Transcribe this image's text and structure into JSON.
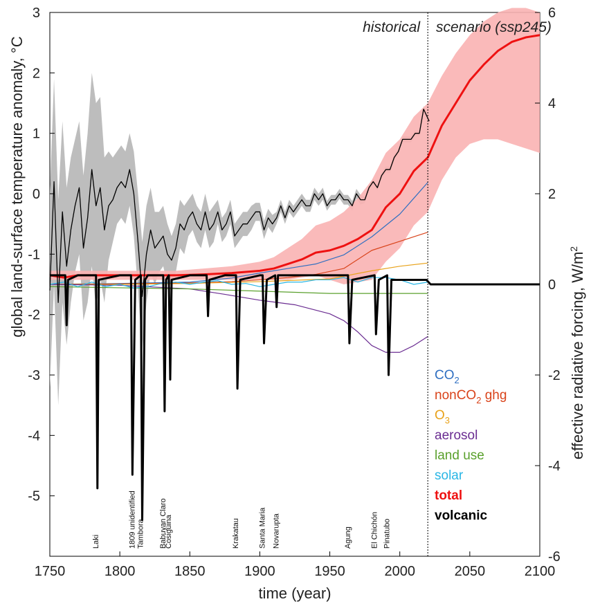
{
  "chart_data": {
    "type": "line",
    "xlabel": "time (year)",
    "ylabel_left": "global land-surface temperature anomaly, °C",
    "ylabel_right": "effective radiative forcing, W/m²",
    "ylabel_right_text": "effective radiative forcing, W/m",
    "ylabel_right_sup": "2",
    "xlim": [
      1750,
      2100
    ],
    "ylim_left": [
      -6,
      3
    ],
    "ylim_right": [
      -6,
      6
    ],
    "xticks": [
      "1750",
      "1800",
      "1850",
      "1900",
      "1950",
      "2000",
      "2050",
      "2100"
    ],
    "yticks_left": [
      "3",
      "2",
      "1",
      "0",
      "-1",
      "-2",
      "-3",
      "-4",
      "-5"
    ],
    "yticks_right": [
      "6",
      "4",
      "2",
      "0",
      "-2",
      "-4",
      "-6"
    ],
    "period_labels": {
      "historical": "historical",
      "scenario": "scenario (ssp245)"
    },
    "period_divider_year": 2020,
    "grid": false,
    "legend_position": "lower-right outside",
    "temperature_series": {
      "axis": "left",
      "color": "#000000",
      "band_color": "#bdbdbd",
      "x": [
        1750,
        1753,
        1756,
        1759,
        1762,
        1765,
        1768,
        1771,
        1774,
        1777,
        1780,
        1783,
        1786,
        1789,
        1792,
        1795,
        1798,
        1801,
        1804,
        1807,
        1810,
        1813,
        1816,
        1819,
        1822,
        1825,
        1828,
        1831,
        1834,
        1837,
        1840,
        1843,
        1846,
        1849,
        1852,
        1855,
        1858,
        1861,
        1864,
        1867,
        1870,
        1873,
        1876,
        1879,
        1882,
        1885,
        1888,
        1891,
        1894,
        1897,
        1900,
        1903,
        1906,
        1909,
        1912,
        1915,
        1918,
        1921,
        1924,
        1927,
        1930,
        1933,
        1936,
        1939,
        1942,
        1945,
        1948,
        1951,
        1954,
        1957,
        1960,
        1963,
        1966,
        1969,
        1972,
        1975,
        1978,
        1981,
        1984,
        1987,
        1990,
        1993,
        1996,
        1999,
        2002,
        2005,
        2008,
        2011,
        2014,
        2017,
        2019,
        2021
      ],
      "y": [
        -1.6,
        0.2,
        -1.8,
        -0.3,
        -1.2,
        -0.6,
        -0.2,
        0.1,
        -0.9,
        -0.4,
        0.4,
        -0.2,
        0.1,
        -0.6,
        -0.2,
        -0.1,
        0.1,
        0.2,
        0.1,
        0.4,
        0.0,
        -0.8,
        -1.7,
        -1.0,
        -0.6,
        -0.9,
        -0.8,
        -0.7,
        -1.0,
        -1.1,
        -0.9,
        -0.5,
        -0.6,
        -0.4,
        -0.3,
        -0.5,
        -0.6,
        -0.3,
        -0.6,
        -0.5,
        -0.3,
        -0.6,
        -0.5,
        -0.3,
        -0.7,
        -0.6,
        -0.5,
        -0.5,
        -0.4,
        -0.3,
        -0.3,
        -0.6,
        -0.4,
        -0.5,
        -0.4,
        -0.2,
        -0.4,
        -0.2,
        -0.3,
        -0.2,
        -0.1,
        -0.2,
        -0.2,
        0.0,
        -0.1,
        0.0,
        -0.2,
        -0.1,
        -0.1,
        0.0,
        -0.1,
        -0.1,
        -0.2,
        0.0,
        -0.1,
        -0.1,
        0.1,
        0.2,
        0.1,
        0.3,
        0.4,
        0.4,
        0.6,
        0.7,
        0.9,
        0.9,
        0.9,
        1.0,
        1.0,
        1.4,
        1.3,
        1.2
      ],
      "band_halfwidth": [
        1.6,
        1.7,
        1.7,
        1.5,
        1.3,
        1.2,
        1.1,
        1.1,
        1.2,
        1.4,
        1.6,
        1.7,
        1.5,
        1.2,
        0.9,
        0.7,
        0.6,
        0.6,
        0.6,
        0.6,
        0.7,
        0.8,
        0.9,
        0.8,
        0.7,
        0.6,
        0.5,
        0.5,
        0.5,
        0.4,
        0.4,
        0.4,
        0.4,
        0.3,
        0.3,
        0.3,
        0.3,
        0.3,
        0.3,
        0.3,
        0.2,
        0.2,
        0.2,
        0.2,
        0.2,
        0.2,
        0.2,
        0.2,
        0.2,
        0.15,
        0.15,
        0.15,
        0.15,
        0.15,
        0.1,
        0.1,
        0.1,
        0.1,
        0.1,
        0.1,
        0.1,
        0.1,
        0.1,
        0.1,
        0.1,
        0.1,
        0.08,
        0.08,
        0.08,
        0.08,
        0.08,
        0.08,
        0.08,
        0.08,
        0.08,
        0.05,
        0.05,
        0.05,
        0.05,
        0.05,
        0.05,
        0.05,
        0.05,
        0.05,
        0.05,
        0.05,
        0.05,
        0.05,
        0.05,
        0.05,
        0.05,
        0.05
      ]
    },
    "forcing_series": [
      {
        "name": "CO2",
        "label_main": "CO",
        "label_sub": "2",
        "color": "#2f6fc1",
        "width": 1.2,
        "axis": "right",
        "x": [
          1750,
          1800,
          1850,
          1880,
          1900,
          1920,
          1940,
          1960,
          1980,
          2000,
          2010,
          2020
        ],
        "y": [
          0,
          0.02,
          0.05,
          0.14,
          0.25,
          0.35,
          0.45,
          0.65,
          1.05,
          1.55,
          1.9,
          2.25
        ]
      },
      {
        "name": "nonCO2 ghg",
        "label_main": "nonCO",
        "label_sub": "2",
        "label_tail": " ghg",
        "color": "#d9431a",
        "width": 1.2,
        "axis": "right",
        "x": [
          1750,
          1800,
          1850,
          1880,
          1900,
          1920,
          1940,
          1960,
          1980,
          2000,
          2010,
          2020
        ],
        "y": [
          0,
          0.01,
          0.03,
          0.06,
          0.1,
          0.15,
          0.22,
          0.35,
          0.75,
          0.95,
          1.05,
          1.15
        ]
      },
      {
        "name": "O3",
        "label_main": "O",
        "label_sub": "3",
        "color": "#e8a21a",
        "width": 1.2,
        "axis": "right",
        "x": [
          1750,
          1800,
          1850,
          1900,
          1950,
          1980,
          2000,
          2020
        ],
        "y": [
          0,
          0.0,
          0.02,
          0.06,
          0.12,
          0.3,
          0.4,
          0.47
        ]
      },
      {
        "name": "aerosol",
        "label_main": "aerosol",
        "color": "#6a2c91",
        "width": 1.2,
        "axis": "right",
        "x": [
          1750,
          1800,
          1850,
          1875,
          1900,
          1925,
          1950,
          1960,
          1970,
          1980,
          1990,
          2000,
          2010,
          2020
        ],
        "y": [
          0,
          -0.02,
          -0.1,
          -0.22,
          -0.35,
          -0.45,
          -0.65,
          -0.8,
          -1.05,
          -1.35,
          -1.5,
          -1.5,
          -1.35,
          -1.15
        ]
      },
      {
        "name": "land use",
        "label_main": "land use",
        "color": "#5aa02c",
        "width": 1.2,
        "axis": "right",
        "x": [
          1750,
          1850,
          1950,
          2020
        ],
        "y": [
          -0.05,
          -0.1,
          -0.2,
          -0.2
        ]
      },
      {
        "name": "solar",
        "label_main": "solar",
        "color": "#29b6e5",
        "width": 1.2,
        "axis": "right",
        "x": [
          1750,
          1760,
          1770,
          1780,
          1790,
          1800,
          1810,
          1820,
          1830,
          1840,
          1850,
          1860,
          1870,
          1880,
          1890,
          1900,
          1910,
          1920,
          1930,
          1940,
          1950,
          1960,
          1970,
          1980,
          1990,
          2000,
          2010,
          2020
        ],
        "y": [
          0,
          0.05,
          -0.05,
          0.05,
          -0.05,
          0.0,
          -0.08,
          -0.05,
          0.02,
          0.05,
          0.0,
          0.05,
          0.08,
          0.0,
          0.02,
          -0.05,
          0.0,
          0.05,
          0.05,
          0.1,
          0.1,
          0.15,
          0.05,
          0.15,
          0.15,
          0.1,
          0.0,
          0.05
        ]
      },
      {
        "name": "total",
        "label_main": "total",
        "color": "#ee1111",
        "width": 3,
        "bold": true,
        "axis": "right",
        "x": [
          1750,
          1760,
          1770,
          1780,
          1790,
          1800,
          1820,
          1840,
          1860,
          1880,
          1900,
          1910,
          1920,
          1930,
          1940,
          1950,
          1960,
          1970,
          1980,
          1990,
          2000,
          2010,
          2020,
          2030,
          2040,
          2050,
          2060,
          2070,
          2080,
          2090,
          2100
        ],
        "y": [
          0.2,
          0.15,
          0.2,
          0.2,
          0.2,
          0.2,
          0.2,
          0.2,
          0.22,
          0.25,
          0.3,
          0.35,
          0.45,
          0.55,
          0.7,
          0.75,
          0.85,
          1.0,
          1.2,
          1.7,
          2.0,
          2.5,
          2.8,
          3.5,
          4.0,
          4.5,
          4.85,
          5.15,
          5.35,
          5.45,
          5.5
        ],
        "band_low": [
          0.1,
          0.1,
          0.1,
          0.1,
          0.1,
          0.1,
          0.1,
          0.1,
          0.1,
          0.1,
          0.1,
          0.1,
          0.1,
          0.15,
          0.2,
          0.1,
          0.0,
          0.05,
          0.1,
          0.5,
          0.8,
          1.3,
          1.6,
          2.3,
          2.8,
          3.1,
          3.2,
          3.2,
          3.1,
          3.0,
          2.9
        ],
        "band_high": [
          0.3,
          0.3,
          0.3,
          0.3,
          0.3,
          0.3,
          0.3,
          0.3,
          0.35,
          0.4,
          0.5,
          0.6,
          0.8,
          1.0,
          1.3,
          1.4,
          1.6,
          1.9,
          2.3,
          2.9,
          3.2,
          3.7,
          4.0,
          4.6,
          5.1,
          5.5,
          5.8,
          6.0,
          6.1,
          6.1,
          6.0
        ]
      },
      {
        "name": "volcanic",
        "label_main": "volcanic",
        "color": "#000000",
        "width": 3,
        "bold": true,
        "axis": "right",
        "x": [
          1750,
          1761,
          1762,
          1763,
          1770,
          1783,
          1784,
          1785,
          1800,
          1808,
          1809,
          1811,
          1815,
          1816,
          1818,
          1820,
          1831,
          1832,
          1833,
          1835,
          1836,
          1837,
          1850,
          1862,
          1863,
          1864,
          1875,
          1883,
          1884,
          1886,
          1900,
          1902,
          1903,
          1905,
          1911,
          1912,
          1913,
          1930,
          1963,
          1964,
          1966,
          1982,
          1983,
          1985,
          1991,
          1992,
          1994,
          2019,
          2022,
          2100
        ],
        "y": [
          0.2,
          0.2,
          -0.9,
          0.1,
          0.2,
          0.2,
          -4.5,
          0.1,
          0.2,
          0.2,
          -4.2,
          0.1,
          0.2,
          -5.2,
          0.1,
          0.2,
          0.2,
          -2.8,
          0.1,
          0.2,
          -2.1,
          0.1,
          0.2,
          0.2,
          -0.7,
          0.1,
          0.2,
          0.2,
          -2.3,
          0.1,
          0.2,
          0.2,
          -1.3,
          0.1,
          0.2,
          -0.5,
          0.2,
          0.2,
          0.2,
          -1.3,
          0.1,
          0.2,
          -1.1,
          0.1,
          0.2,
          -2.0,
          0.1,
          0.1,
          0.0,
          0.0
        ]
      }
    ],
    "volcano_annotations": [
      {
        "name": "Laki",
        "year": 1783
      },
      {
        "name": "1809 unidentified",
        "year": 1809
      },
      {
        "name": "Tambora",
        "year": 1815
      },
      {
        "name": "Babuyan Claro",
        "year": 1831
      },
      {
        "name": "Cosigüina",
        "year": 1835
      },
      {
        "name": "Krakatau",
        "year": 1883
      },
      {
        "name": "Santa Maria",
        "year": 1902
      },
      {
        "name": "Novarupta",
        "year": 1912
      },
      {
        "name": "Agung",
        "year": 1963
      },
      {
        "name": "El Chichón",
        "year": 1982
      },
      {
        "name": "Pinatubo",
        "year": 1991
      }
    ]
  }
}
